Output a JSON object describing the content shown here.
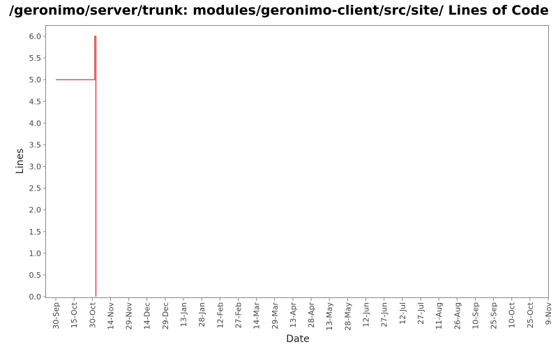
{
  "chart_data": {
    "type": "line",
    "title": "/geronimo/server/trunk: modules/geronimo-client/src/site/ Lines of Code",
    "xlabel": "Date",
    "ylabel": "Lines",
    "step": true,
    "ylim": [
      0.0,
      6.25
    ],
    "y_ticks": [
      "0.0",
      "0.5",
      "1.0",
      "1.5",
      "2.0",
      "2.5",
      "3.0",
      "3.5",
      "4.0",
      "4.5",
      "5.0",
      "5.5",
      "6.0"
    ],
    "x_ticks": [
      "30-Sep",
      "15-Oct",
      "30-Oct",
      "14-Nov",
      "29-Nov",
      "14-Dec",
      "29-Dec",
      "13-Jan",
      "28-Jan",
      "12-Feb",
      "27-Feb",
      "14-Mar",
      "29-Mar",
      "13-Apr",
      "28-Apr",
      "13-May",
      "28-May",
      "12-Jun",
      "27-Jun",
      "12-Jul",
      "27-Jul",
      "11-Aug",
      "26-Aug",
      "10-Sep",
      "25-Sep",
      "10-Oct",
      "25-Oct",
      "9-Nov"
    ],
    "series": [
      {
        "color": "#cc0000",
        "points": [
          {
            "x": "30-Sep",
            "y": 5
          },
          {
            "x": "1-Nov",
            "y": 6
          },
          {
            "x": "2-Nov",
            "y": 0
          }
        ]
      }
    ],
    "grid": false
  }
}
